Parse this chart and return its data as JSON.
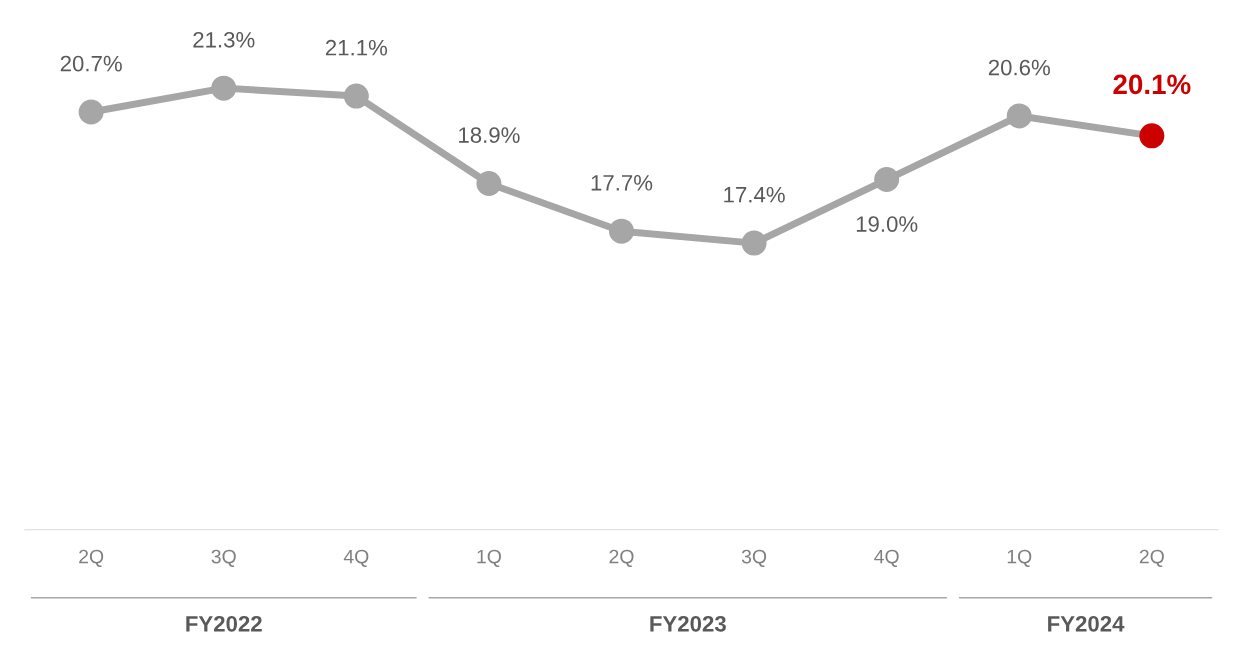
{
  "chart_data": {
    "type": "line",
    "categories": [
      "2Q",
      "3Q",
      "4Q",
      "1Q",
      "2Q",
      "3Q",
      "4Q",
      "1Q",
      "2Q"
    ],
    "series": [
      {
        "color": "#a6a6a6",
        "values": [
          20.7,
          21.3,
          21.1,
          18.9,
          17.7,
          17.4,
          19.0,
          20.6,
          20.1
        ],
        "colors": [
          "#a6a6a6",
          "#a6a6a6",
          "#a6a6a6",
          "#a6a6a6",
          "#a6a6a6",
          "#a6a6a6",
          "#a6a6a6",
          "#a6a6a6",
          "#cc0000"
        ],
        "value_labels": [
          "20.7%",
          "21.3%",
          "21.1%",
          "18.9%",
          "17.7%",
          "17.4%",
          "19.0%",
          "20.6%",
          "20.1%"
        ]
      }
    ],
    "tick_labels": "x",
    "marker": "circle",
    "line_style": "solid",
    "grid": false,
    "annotations": [
      "FY2022",
      "FY2023",
      "FY2024"
    ]
  }
}
